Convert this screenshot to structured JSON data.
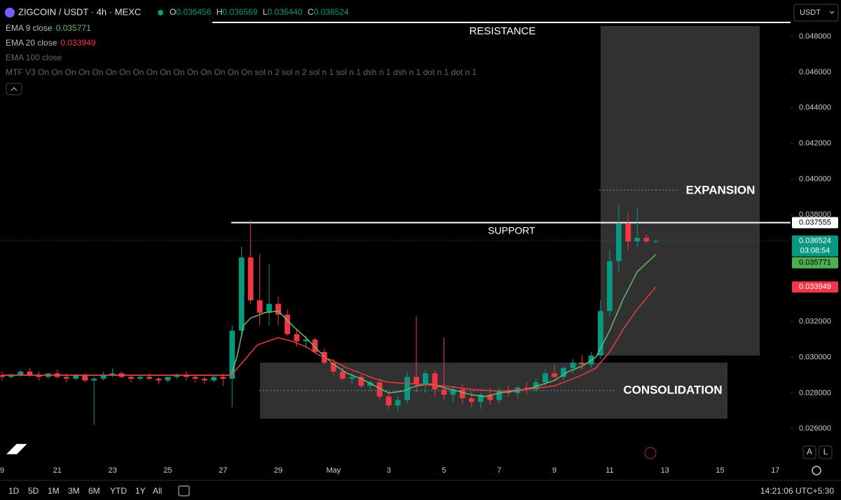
{
  "header": {
    "symbol": "ZIGCOIN / USDT · 4h · MEXC",
    "ohlc": [
      {
        "key": "O",
        "value": "0.036456"
      },
      {
        "key": "H",
        "value": "0.036569"
      },
      {
        "key": "L",
        "value": "0.036440"
      },
      {
        "key": "C",
        "value": "0.036524"
      }
    ],
    "indicators": [
      {
        "name": "EMA 9 close",
        "value": "0.035771"
      },
      {
        "name": "EMA 20 close",
        "value": "0.033949"
      },
      {
        "name": "EMA 100 close"
      },
      {
        "name": "MTF V3 On On On On On On On On On On On On On On On On sol n 2 sol n 2 sol n 1 sol n 1 dsh n 1 dsh n 1 dot n 1 dot n 1"
      }
    ]
  },
  "currency": "USDT",
  "chart_data": {
    "type": "candlestick",
    "up_color": "#089981",
    "down_color": "#f23645",
    "x": [
      0,
      0.33,
      0.67,
      1,
      1.33,
      1.67,
      2,
      2.33,
      2.67,
      3,
      3.33,
      3.67,
      4,
      4.33,
      4.67,
      5,
      5.33,
      5.67,
      6,
      6.33,
      6.67,
      7,
      7.33,
      7.67,
      8,
      8.33,
      8.67,
      9,
      9.33,
      9.67,
      10,
      10.33,
      10.67,
      11,
      11.33,
      11.67,
      12,
      12.33,
      12.67,
      13,
      13.33,
      13.67,
      14,
      14.33,
      14.67,
      15,
      15.33,
      15.67,
      16,
      16.33,
      16.67,
      17,
      17.33,
      17.67,
      18,
      18.33,
      18.67,
      19,
      19.33,
      19.67,
      20,
      20.33,
      20.67,
      21,
      21.33,
      21.67,
      22,
      22.33,
      22.67,
      23,
      23.33,
      23.67
    ],
    "open": [
      0.029,
      0.0289,
      0.029,
      0.0292,
      0.029,
      0.0289,
      0.0291,
      0.0289,
      0.0288,
      0.029,
      0.0287,
      0.0288,
      0.029,
      0.0291,
      0.0289,
      0.0288,
      0.0289,
      0.0288,
      0.0287,
      0.0289,
      0.029,
      0.0289,
      0.0288,
      0.0287,
      0.0289,
      0.0288,
      0.0315,
      0.0356,
      0.0332,
      0.0325,
      0.033,
      0.0324,
      0.0313,
      0.0309,
      0.031,
      0.0303,
      0.0297,
      0.0292,
      0.0288,
      0.0289,
      0.0284,
      0.0286,
      0.0278,
      0.0273,
      0.0276,
      0.0289,
      0.0285,
      0.0291,
      0.0282,
      0.0279,
      0.0282,
      0.0277,
      0.0275,
      0.0279,
      0.0276,
      0.0281,
      0.028,
      0.0283,
      0.0282,
      0.0286,
      0.0291,
      0.0289,
      0.0294,
      0.0297,
      0.0296,
      0.0301,
      0.0326,
      0.0354,
      0.0375,
      0.0365,
      0.0367,
      0.0365
    ],
    "high": [
      0.0292,
      0.0291,
      0.0293,
      0.0294,
      0.0292,
      0.0291,
      0.0293,
      0.0291,
      0.029,
      0.0291,
      0.0289,
      0.0292,
      0.0294,
      0.0292,
      0.029,
      0.029,
      0.0291,
      0.0289,
      0.0289,
      0.0291,
      0.0292,
      0.029,
      0.0289,
      0.029,
      0.0291,
      0.0318,
      0.0362,
      0.0377,
      0.0358,
      0.0352,
      0.0334,
      0.0327,
      0.0316,
      0.0312,
      0.0311,
      0.0305,
      0.0299,
      0.0294,
      0.0291,
      0.029,
      0.0287,
      0.0288,
      0.0281,
      0.0278,
      0.0292,
      0.0323,
      0.0293,
      0.0293,
      0.0311,
      0.0284,
      0.0285,
      0.0281,
      0.028,
      0.0283,
      0.0283,
      0.0284,
      0.0284,
      0.0286,
      0.0288,
      0.0293,
      0.0296,
      0.0295,
      0.0299,
      0.0301,
      0.0303,
      0.0332,
      0.036,
      0.0386,
      0.0381,
      0.0384,
      0.0369,
      0.0366
    ],
    "low": [
      0.0287,
      0.0288,
      0.0289,
      0.0289,
      0.0287,
      0.0288,
      0.0288,
      0.0286,
      0.0287,
      0.0286,
      0.0262,
      0.0287,
      0.0289,
      0.0288,
      0.0286,
      0.0287,
      0.0287,
      0.0285,
      0.0286,
      0.0288,
      0.0287,
      0.0286,
      0.0285,
      0.0286,
      0.0284,
      0.0272,
      0.0312,
      0.033,
      0.0318,
      0.0318,
      0.0318,
      0.0312,
      0.0306,
      0.0305,
      0.0302,
      0.0296,
      0.029,
      0.0287,
      0.0285,
      0.0283,
      0.0281,
      0.0276,
      0.0271,
      0.027,
      0.0274,
      0.028,
      0.028,
      0.0278,
      0.0276,
      0.0275,
      0.0274,
      0.0272,
      0.0271,
      0.0273,
      0.0274,
      0.0278,
      0.0277,
      0.0279,
      0.028,
      0.0284,
      0.0287,
      0.0287,
      0.0291,
      0.0293,
      0.0294,
      0.0299,
      0.0323,
      0.0348,
      0.036,
      0.0362,
      0.0364,
      0.0364
    ],
    "close": [
      0.0289,
      0.029,
      0.0292,
      0.029,
      0.0289,
      0.0291,
      0.0289,
      0.0288,
      0.029,
      0.0287,
      0.0288,
      0.029,
      0.0291,
      0.0289,
      0.0288,
      0.0289,
      0.0288,
      0.0287,
      0.0289,
      0.029,
      0.0289,
      0.0288,
      0.0287,
      0.0289,
      0.0288,
      0.0315,
      0.0356,
      0.0332,
      0.0325,
      0.033,
      0.0324,
      0.0313,
      0.0309,
      0.031,
      0.0303,
      0.0297,
      0.0292,
      0.0288,
      0.0289,
      0.0284,
      0.0286,
      0.0278,
      0.0273,
      0.0276,
      0.0289,
      0.0285,
      0.0291,
      0.0282,
      0.0279,
      0.0282,
      0.0277,
      0.0275,
      0.0279,
      0.0276,
      0.0281,
      0.028,
      0.0283,
      0.0282,
      0.0286,
      0.0291,
      0.0289,
      0.0294,
      0.0297,
      0.0296,
      0.0301,
      0.0326,
      0.0354,
      0.0375,
      0.0365,
      0.0367,
      0.0365,
      0.036524
    ],
    "lines": [
      {
        "color": "#66bb6a",
        "x": [
          0,
          8.3,
          8.5,
          8.75,
          9,
          9.5,
          10,
          10.5,
          11,
          11.5,
          12,
          12.5,
          13,
          13.5,
          14,
          14.5,
          15,
          15.5,
          16,
          16.5,
          17,
          17.5,
          18,
          19,
          20,
          20.5,
          21,
          21.5,
          22,
          22.5,
          23,
          23.67
        ],
        "values": [
          0.029,
          0.029,
          0.03,
          0.0318,
          0.0322,
          0.0325,
          0.0326,
          0.0318,
          0.0311,
          0.0303,
          0.0296,
          0.0291,
          0.0288,
          0.0284,
          0.028,
          0.0281,
          0.0284,
          0.0285,
          0.0283,
          0.0281,
          0.0279,
          0.0278,
          0.028,
          0.0282,
          0.0287,
          0.0292,
          0.0295,
          0.03,
          0.0315,
          0.0333,
          0.0348,
          0.035771
        ]
      },
      {
        "color": "#f23645",
        "x": [
          0,
          8.3,
          8.75,
          9.25,
          10,
          10.5,
          11,
          11.5,
          12,
          12.5,
          13,
          13.5,
          14,
          15,
          16,
          17,
          18,
          19,
          20,
          20.5,
          21,
          21.5,
          22,
          22.5,
          23,
          23.67
        ],
        "values": [
          0.029,
          0.029,
          0.0298,
          0.0307,
          0.0311,
          0.0309,
          0.0306,
          0.0301,
          0.0298,
          0.0294,
          0.0291,
          0.0288,
          0.0286,
          0.0285,
          0.0284,
          0.0282,
          0.0281,
          0.0282,
          0.0284,
          0.0287,
          0.029,
          0.0294,
          0.0303,
          0.0316,
          0.0327,
          0.033949
        ]
      }
    ],
    "xlim": [
      -0.076,
      28.55
    ],
    "xticks": [
      {
        "value": 0,
        "label": "9"
      },
      {
        "value": 2,
        "label": "21"
      },
      {
        "value": 4,
        "label": "23"
      },
      {
        "value": 6,
        "label": "25"
      },
      {
        "value": 8,
        "label": "27"
      },
      {
        "value": 10,
        "label": "29"
      },
      {
        "value": 12,
        "label": "May"
      },
      {
        "value": 14,
        "label": "3"
      },
      {
        "value": 16,
        "label": "5"
      },
      {
        "value": 18,
        "label": "7"
      },
      {
        "value": 20,
        "label": "9"
      },
      {
        "value": 22,
        "label": "11"
      },
      {
        "value": 24,
        "label": "13"
      },
      {
        "value": 26,
        "label": "15"
      },
      {
        "value": 28,
        "label": "17"
      }
    ],
    "ylim": [
      0.02408,
      0.05005
    ],
    "yticks": [
      {
        "value": 0.026,
        "label": "0.026000"
      },
      {
        "value": 0.028,
        "label": "0.028000"
      },
      {
        "value": 0.03,
        "label": "0.030000"
      },
      {
        "value": 0.032,
        "label": "0.032000"
      },
      {
        "value": 0.034,
        "label": "0.034000"
      },
      {
        "value": 0.036,
        "label": "0.036000"
      },
      {
        "value": 0.038,
        "label": "0.038000"
      },
      {
        "value": 0.04,
        "label": "0.040000"
      },
      {
        "value": 0.042,
        "label": "0.042000"
      },
      {
        "value": 0.044,
        "label": "0.044000"
      },
      {
        "value": 0.046,
        "label": "0.046000"
      },
      {
        "value": 0.048,
        "label": "0.048000"
      }
    ],
    "support": {
      "value": 0.037555,
      "label": "SUPPORT"
    },
    "annotations": {
      "resistance": "RESISTANCE",
      "expansion": "EXPANSION",
      "consolidation": "CONSOLIDATION"
    },
    "price_labels": [
      {
        "value": 0.037555,
        "color": "#ffffff",
        "text_color": "#000000"
      },
      {
        "value": 0.036524,
        "countdown": "03:08:54",
        "color": "#089981",
        "text_color": "#ffffff"
      },
      {
        "value": 0.035771,
        "color": "#4caf50",
        "text_color": "#000000"
      },
      {
        "value": 0.033949,
        "color": "#f23645",
        "text_color": "#ffffff"
      }
    ]
  },
  "toolbar": {
    "ranges": [
      "1D",
      "5D",
      "1M",
      "3M",
      "6M",
      "YTD",
      "1Y",
      "All"
    ],
    "clock": "14:21:06 UTC+5:30",
    "scale_buttons": [
      "A",
      "L"
    ]
  }
}
